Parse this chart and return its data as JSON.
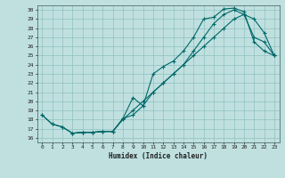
{
  "xlabel": "Humidex (Indice chaleur)",
  "bg_color": "#c0e0e0",
  "grid_color": "#90c0c0",
  "line_color": "#006868",
  "spine_color": "#507070",
  "xlim": [
    -0.5,
    23.5
  ],
  "ylim": [
    15.5,
    30.5
  ],
  "yticks": [
    16,
    17,
    18,
    19,
    20,
    21,
    22,
    23,
    24,
    25,
    26,
    27,
    28,
    29,
    30
  ],
  "xticks": [
    0,
    1,
    2,
    3,
    4,
    5,
    6,
    7,
    8,
    9,
    10,
    11,
    12,
    13,
    14,
    15,
    16,
    17,
    18,
    19,
    20,
    21,
    22,
    23
  ],
  "series1_x": [
    0,
    1,
    2,
    3,
    4,
    5,
    6,
    7,
    8,
    9,
    10,
    11,
    12,
    13,
    14,
    15,
    16,
    17,
    18,
    19,
    20,
    21,
    22,
    23
  ],
  "series1_y": [
    18.5,
    17.5,
    17.2,
    16.5,
    16.6,
    16.6,
    16.7,
    16.7,
    18.1,
    20.4,
    19.5,
    23.0,
    23.8,
    24.4,
    25.5,
    27.0,
    29.0,
    29.2,
    30.1,
    30.2,
    29.8,
    26.5,
    25.5,
    25.0
  ],
  "series2_x": [
    0,
    1,
    2,
    3,
    4,
    5,
    6,
    7,
    8,
    9,
    10,
    11,
    12,
    13,
    14,
    15,
    16,
    17,
    18,
    19,
    20,
    21,
    22,
    23
  ],
  "series2_y": [
    18.5,
    17.5,
    17.2,
    16.5,
    16.6,
    16.6,
    16.7,
    16.7,
    18.1,
    18.5,
    19.5,
    21.0,
    22.0,
    23.0,
    24.0,
    25.5,
    27.0,
    28.5,
    29.5,
    30.0,
    29.5,
    27.0,
    26.5,
    25.0
  ],
  "series3_x": [
    3,
    4,
    5,
    6,
    7,
    8,
    9,
    10,
    11,
    12,
    13,
    14,
    15,
    16,
    17,
    18,
    19,
    20,
    21,
    22,
    23
  ],
  "series3_y": [
    16.5,
    16.6,
    16.6,
    16.7,
    16.7,
    18.0,
    19.0,
    20.0,
    21.0,
    22.0,
    23.0,
    24.0,
    25.0,
    26.0,
    27.0,
    28.0,
    29.0,
    29.5,
    29.0,
    27.5,
    25.0
  ]
}
